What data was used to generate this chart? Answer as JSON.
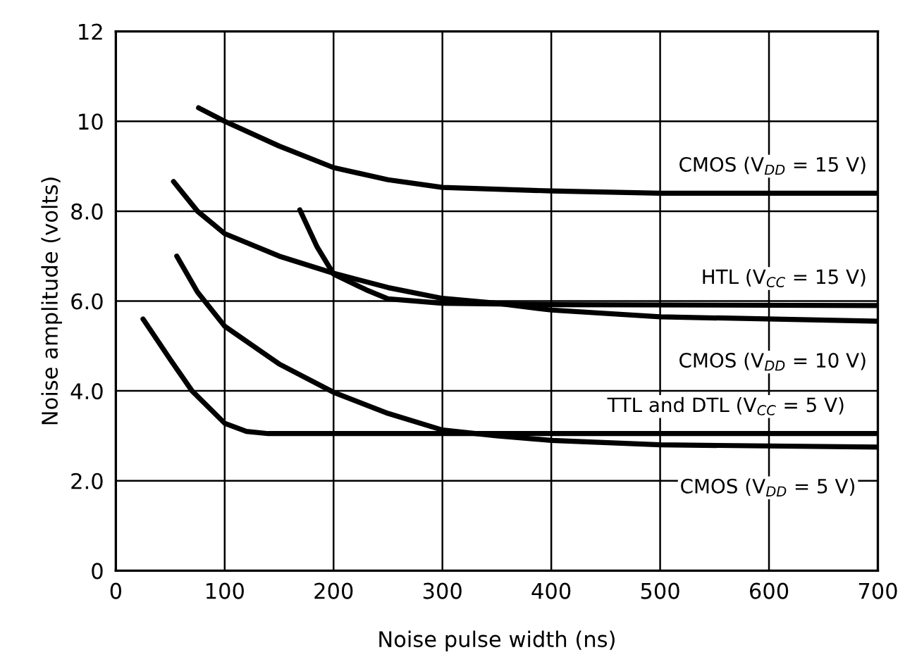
{
  "chart_data": {
    "type": "line",
    "xlabel": "Noise pulse width (ns)",
    "ylabel": "Noise amplitude (volts)",
    "xlim": [
      0,
      700
    ],
    "ylim": [
      0,
      12
    ],
    "xticks": [
      0,
      100,
      200,
      300,
      400,
      500,
      600,
      700
    ],
    "yticks": [
      0,
      {
        "value": 2,
        "label": "2.0"
      },
      {
        "value": 4,
        "label": "4.0"
      },
      {
        "value": 6,
        "label": "6.0"
      },
      {
        "value": 8,
        "label": "8.0"
      },
      10,
      12
    ],
    "grid": true,
    "marker": "none",
    "line_style": "solid",
    "series": [
      {
        "color": "#000000",
        "x": [
          76,
          100,
          150,
          200,
          250,
          300,
          400,
          500,
          700
        ],
        "values": [
          10.3,
          10.0,
          9.45,
          8.97,
          8.7,
          8.53,
          8.45,
          8.4,
          8.4
        ]
      },
      {
        "color": "#000000",
        "x": [
          169,
          185,
          200,
          230,
          250,
          300,
          400,
          700
        ],
        "values": [
          8.03,
          7.2,
          6.6,
          6.25,
          6.05,
          5.95,
          5.92,
          5.9
        ]
      },
      {
        "color": "#000000",
        "x": [
          53,
          75,
          100,
          150,
          200,
          250,
          300,
          350,
          400,
          500,
          700
        ],
        "values": [
          8.66,
          8.0,
          7.5,
          7.0,
          6.62,
          6.3,
          6.06,
          5.95,
          5.8,
          5.65,
          5.55
        ]
      },
      {
        "color": "#000000",
        "x": [
          25,
          50,
          70,
          100,
          120,
          140,
          200,
          400,
          700
        ],
        "values": [
          5.6,
          4.7,
          4.0,
          3.28,
          3.1,
          3.05,
          3.05,
          3.05,
          3.05
        ]
      },
      {
        "color": "#000000",
        "x": [
          56,
          75,
          100,
          150,
          200,
          250,
          300,
          350,
          400,
          500,
          700
        ],
        "values": [
          7.0,
          6.2,
          5.44,
          4.6,
          3.97,
          3.5,
          3.13,
          3.0,
          2.9,
          2.8,
          2.75
        ]
      }
    ],
    "annotations": [
      {
        "text": "CMOS (V$_{DD}$ = 15 V)",
        "x": 690,
        "y": 8.4
      },
      {
        "text": "HTL (V$_{CC}$ = 15 V)",
        "x": 690,
        "y": 5.9
      },
      {
        "text": "CMOS (V$_{DD}$ = 10 V)",
        "x": 690,
        "y": 5.55
      },
      {
        "text": "TTL and DTL (V$_{CC}$ = 5 V)",
        "x": 670,
        "y": 3.05
      },
      {
        "text": "CMOS (V$_{DD}$ = 5 V)",
        "x": 680,
        "y": 2.75
      }
    ]
  }
}
